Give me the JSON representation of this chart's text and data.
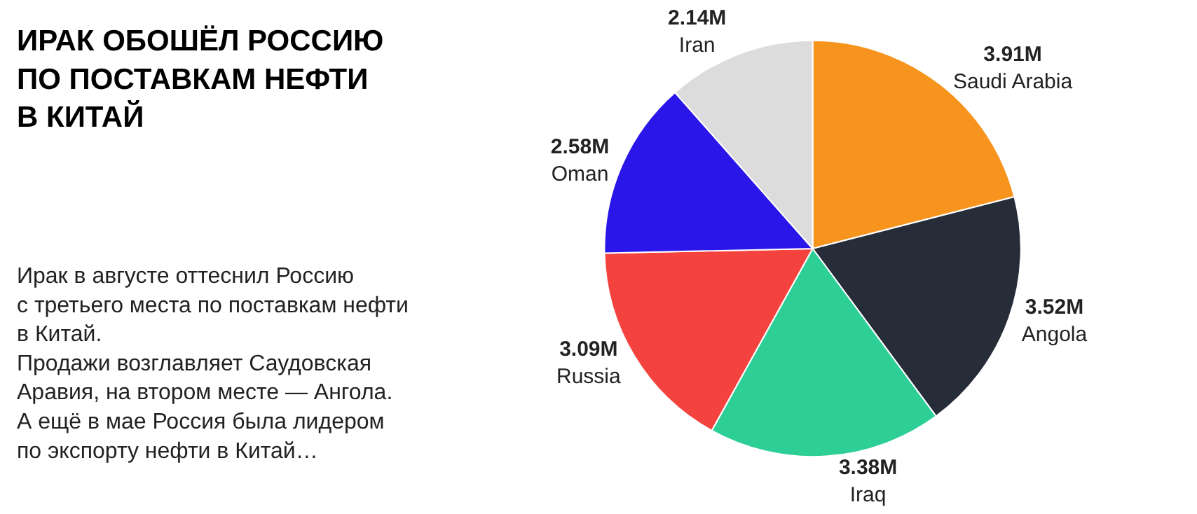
{
  "chart_data": {
    "type": "pie",
    "title": "ИРАК ОБОШЁЛ РОССИЮ\nПО ПОСТАВКАМ НЕФТИ\nВ КИТАЙ",
    "subtitle": "Ирак в августе оттеснил Россию\nс третьего места по поставкам нефти\nв Китай.\nПродажи возглавляет Саудовская\nАравия, на втором месте — Ангола.\nА ещё в мае Россия была лидером\nпо экспорту нефти в Китай…",
    "categories": [
      "Saudi Arabia",
      "Angola",
      "Iraq",
      "Russia",
      "Oman",
      "Iran"
    ],
    "values": [
      3.91,
      3.52,
      3.38,
      3.09,
      2.58,
      2.14
    ],
    "value_labels": [
      "3.91M",
      "3.52M",
      "3.38M",
      "3.09M",
      "2.58M",
      "2.14M"
    ],
    "colors": [
      "#f7941d",
      "#262c38",
      "#2ecf96",
      "#f4433f",
      "#2a16e8",
      "#dcdcdc"
    ],
    "legend": false
  }
}
